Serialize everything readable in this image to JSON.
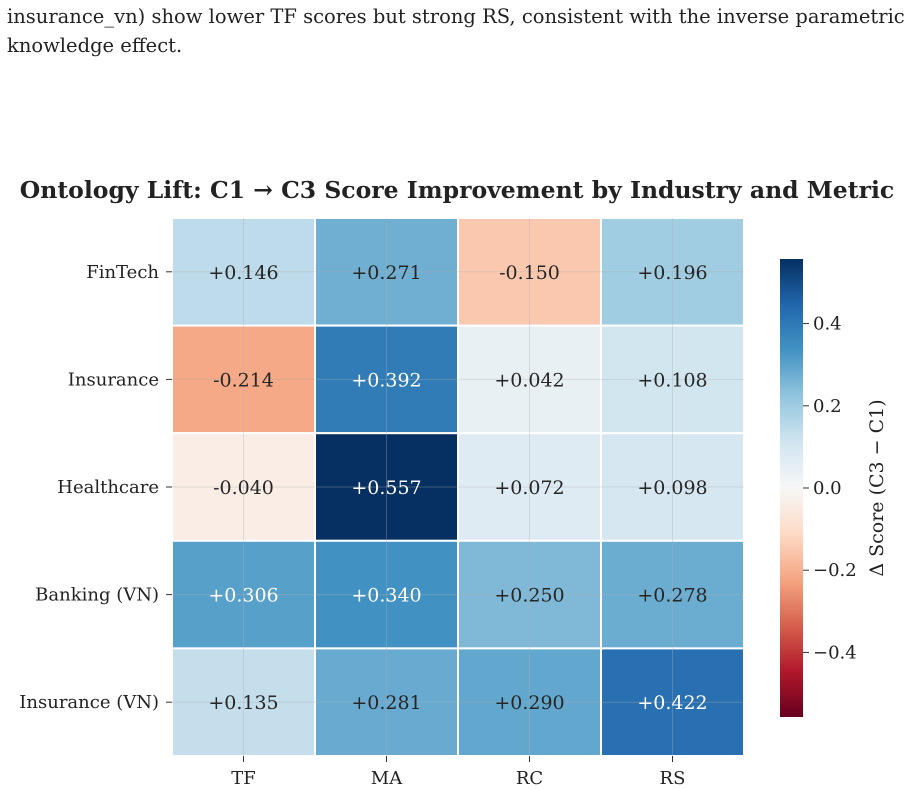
{
  "caption": {
    "line1": "insurance_vn) show lower TF scores but strong RS, consistent with the inverse parametric",
    "line2": "knowledge effect."
  },
  "chart_data": {
    "type": "heatmap",
    "title": "Ontology Lift: C1 → C3 Score Improvement by Industry and Metric",
    "rows": [
      "FinTech",
      "Insurance",
      "Healthcare",
      "Banking (VN)",
      "Insurance (VN)"
    ],
    "columns": [
      "TF",
      "MA",
      "RC",
      "RS"
    ],
    "values": [
      [
        0.146,
        0.271,
        -0.15,
        0.196
      ],
      [
        -0.214,
        0.392,
        0.042,
        0.108
      ],
      [
        -0.04,
        0.557,
        0.072,
        0.098
      ],
      [
        0.306,
        0.34,
        0.25,
        0.278
      ],
      [
        0.135,
        0.281,
        0.29,
        0.422
      ]
    ],
    "labels": [
      [
        "+0.146",
        "+0.271",
        "-0.150",
        "+0.196"
      ],
      [
        "-0.214",
        "+0.392",
        "+0.042",
        "+0.108"
      ],
      [
        "-0.040",
        "+0.557",
        "+0.072",
        "+0.098"
      ],
      [
        "+0.306",
        "+0.340",
        "+0.250",
        "+0.278"
      ],
      [
        "+0.135",
        "+0.281",
        "+0.290",
        "+0.422"
      ]
    ],
    "colormap": "RdBu",
    "vmin": -0.557,
    "vmax": 0.557,
    "colorbar": {
      "label": "Δ Score (C3 − C1)",
      "ticks": [
        0.4,
        0.2,
        0.0,
        -0.2,
        -0.4
      ],
      "tick_labels": [
        "0.4",
        "0.2",
        "0.0",
        "−0.2",
        "−0.4"
      ]
    },
    "grid": true
  }
}
